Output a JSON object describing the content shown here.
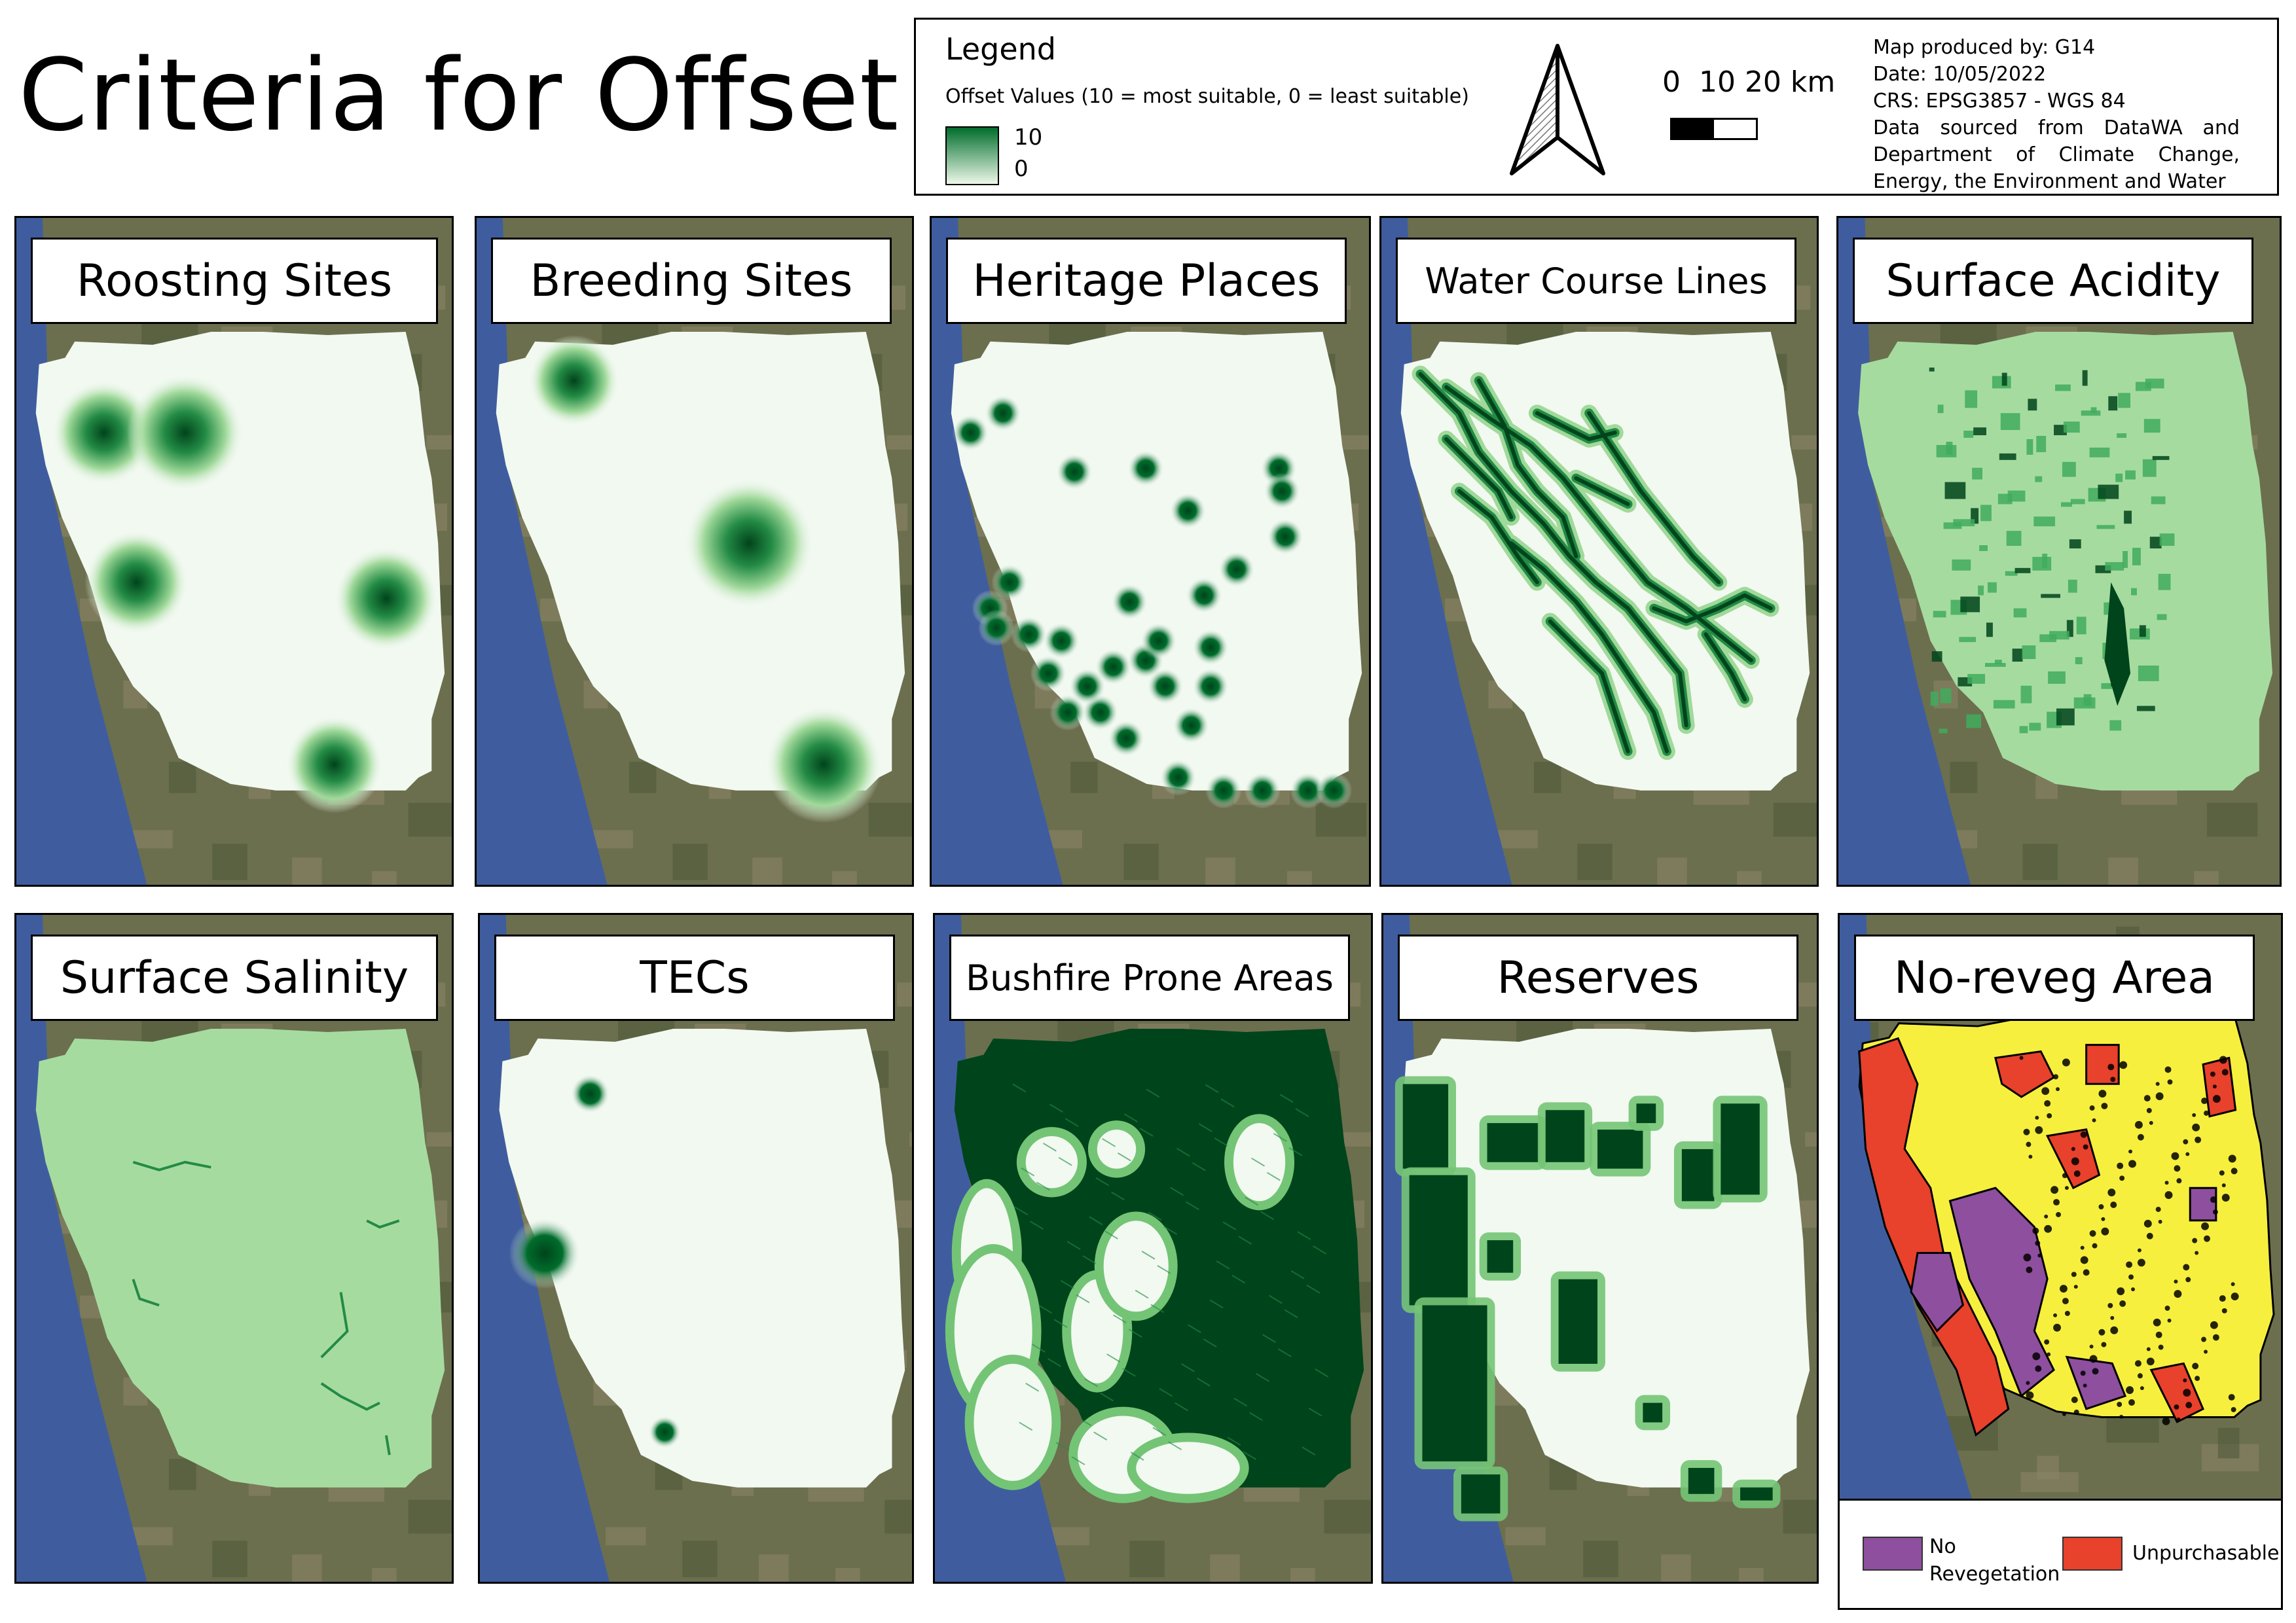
{
  "title": "Criteria for Offset",
  "legend": {
    "title": "Legend",
    "subtitle": "Offset Values (10 = most suitable, 0 = least suitable)",
    "ramp_high": "10",
    "ramp_low": "0",
    "ramp_colors": [
      "#006d2c",
      "#edf8e9"
    ]
  },
  "scale": {
    "labels": "0  10 20 km"
  },
  "north_arrow": "north-arrow-icon",
  "meta": {
    "produced_by": "Map produced by: G14",
    "date": "Date: 10/05/2022",
    "crs": "CRS: EPSG3857 - WGS 84",
    "source_line1": "Data sourced from DataWA and",
    "source_line2": "Department of Climate Change,",
    "source_line3": "Energy, the Environment and Water"
  },
  "panels": [
    {
      "id": "roosting",
      "title": "Roosting Sites"
    },
    {
      "id": "breeding",
      "title": "Breeding Sites"
    },
    {
      "id": "heritage",
      "title": "Heritage Places"
    },
    {
      "id": "water",
      "title": "Water Course Lines"
    },
    {
      "id": "acidity",
      "title": "Surface Acidity"
    },
    {
      "id": "salinity",
      "title": "Surface Salinity"
    },
    {
      "id": "tecs",
      "title": "TECs"
    },
    {
      "id": "bushfire",
      "title": "Bushfire Prone Areas"
    },
    {
      "id": "reserves",
      "title": "Reserves"
    },
    {
      "id": "noreveg",
      "title": "No-reveg Area"
    }
  ],
  "noreveg_legend": {
    "item1_line1": "No",
    "item1_line2": "Revegetation",
    "item1_color": "#8e4f9e",
    "item2": "Unpurchasable",
    "item2_color": "#e8412c",
    "other_color": "#f7ef3e"
  },
  "colors": {
    "ocean": "#3f5d9e",
    "land": "#6b6f4e",
    "region_light": "#f2f9f1",
    "region_mid": "#a6dba0",
    "dark_green": "#00441b"
  }
}
